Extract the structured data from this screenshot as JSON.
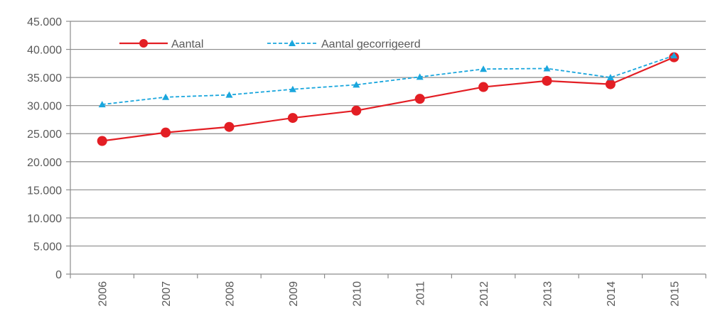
{
  "chart_data": {
    "type": "line",
    "categories": [
      "2006",
      "2007",
      "2008",
      "2009",
      "2010",
      "2011",
      "2012",
      "2013",
      "2014",
      "2015"
    ],
    "series": [
      {
        "name": "Aantal",
        "values": [
          23700,
          25200,
          26200,
          27800,
          29100,
          31200,
          33300,
          34400,
          33800,
          38600
        ],
        "color": "#e31e24",
        "style": "solid",
        "marker": "circle"
      },
      {
        "name": "Aantal gecorrigeerd",
        "values": [
          30200,
          31500,
          31900,
          32900,
          33700,
          35100,
          36500,
          36600,
          35000,
          38900
        ],
        "color": "#1aa6dd",
        "style": "dashed",
        "marker": "triangle"
      }
    ],
    "y_ticks": [
      "0",
      "5.000",
      "10.000",
      "15.000",
      "20.000",
      "25.000",
      "30.000",
      "35.000",
      "40.000",
      "45.000"
    ],
    "ylim": [
      0,
      45000
    ],
    "grid": true,
    "legend_position": "top-left"
  }
}
